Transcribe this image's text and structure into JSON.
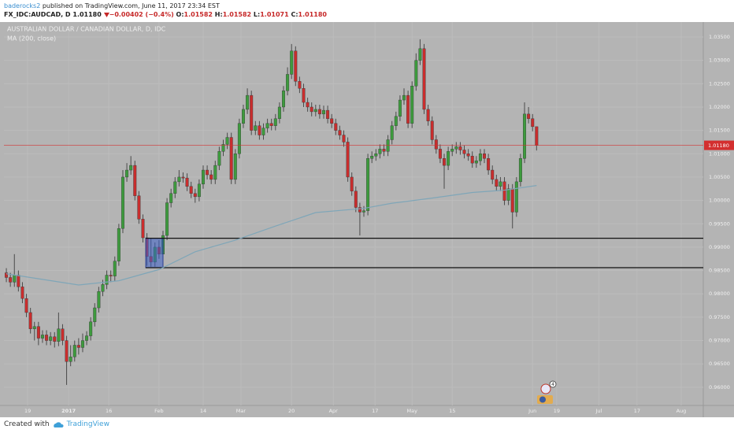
{
  "header": {
    "author": "baderocks2",
    "published": "published on TradingView.com, June 11, 2017 23:34 EST",
    "symbol": "FX_IDC:AUDCAD, D",
    "price": "1.01180",
    "change": "−0.00402 (−0.4%)",
    "o_label": "O:",
    "o": "1.01582",
    "h_label": "H:",
    "h": "1.01582",
    "l_label": "L:",
    "l": "1.01071",
    "c_label": "C:",
    "c": "1.01180"
  },
  "footer": {
    "created": "Created with",
    "brand": "TradingView"
  },
  "events_badge": "4",
  "chart_data": {
    "type": "candlestick",
    "title": "AUSTRALIAN DOLLAR / CANADIAN DOLLAR, D, IDC",
    "up_color": "#3d9b3d",
    "down_color": "#c92d2d",
    "grid": true,
    "xlim": [
      -0.6,
      173.5
    ],
    "xticks": [
      {
        "value": 5.3,
        "label": "19"
      },
      {
        "value": 15.5,
        "label": "2017"
      },
      {
        "value": 25.5,
        "label": "16"
      },
      {
        "value": 38,
        "label": "Feb"
      },
      {
        "value": 49,
        "label": "14"
      },
      {
        "value": 58.4,
        "label": "Mar"
      },
      {
        "value": 71,
        "label": "20"
      },
      {
        "value": 81.4,
        "label": "Apr"
      },
      {
        "value": 91.8,
        "label": "17"
      },
      {
        "value": 101,
        "label": "May"
      },
      {
        "value": 111,
        "label": "15"
      },
      {
        "value": 131,
        "label": "Jun"
      },
      {
        "value": 137,
        "label": "19"
      },
      {
        "value": 147.5,
        "label": "Jul"
      },
      {
        "value": 157,
        "label": "17"
      },
      {
        "value": 168,
        "label": "Aug"
      }
    ],
    "ylim": [
      0.9561,
      1.0382
    ],
    "yticks": [
      {
        "value": 0.96,
        "label": "0.96000"
      },
      {
        "value": 0.965,
        "label": "0.96500"
      },
      {
        "value": 0.97,
        "label": "0.97000"
      },
      {
        "value": 0.975,
        "label": "0.97500"
      },
      {
        "value": 0.98,
        "label": "0.98000"
      },
      {
        "value": 0.985,
        "label": "0.98500"
      },
      {
        "value": 0.99,
        "label": "0.99000"
      },
      {
        "value": 0.995,
        "label": "0.99500"
      },
      {
        "value": 1.0,
        "label": "1.00000"
      },
      {
        "value": 1.005,
        "label": "1.00500"
      },
      {
        "value": 1.01,
        "label": "1.01000"
      },
      {
        "value": 1.015,
        "label": "1.01500"
      },
      {
        "value": 1.02,
        "label": "1.02000"
      },
      {
        "value": 1.025,
        "label": "1.02500"
      },
      {
        "value": 1.03,
        "label": "1.03000"
      },
      {
        "value": 1.035,
        "label": "1.03500"
      }
    ],
    "open": [
      0.9845,
      0.9835,
      0.9825,
      0.984,
      0.9815,
      0.979,
      0.976,
      0.9725,
      0.973,
      0.9705,
      0.9712,
      0.97,
      0.9708,
      0.9698,
      0.9725,
      0.97,
      0.9655,
      0.9665,
      0.969,
      0.9685,
      0.97,
      0.971,
      0.974,
      0.977,
      0.9805,
      0.982,
      0.984,
      0.9838,
      0.987,
      0.994,
      1.005,
      1.0065,
      1.0075,
      1.001,
      0.996,
      0.992,
      0.988,
      0.9868,
      0.99,
      0.9885,
      0.9925,
      0.9995,
      1.0015,
      1.004,
      1.005,
      1.0048,
      1.003,
      1.0015,
      1.0008,
      1.0035,
      1.0065,
      1.0055,
      1.0045,
      1.0075,
      1.0105,
      1.012,
      1.0135,
      1.0045,
      1.01,
      1.0165,
      1.0195,
      1.0225,
      1.015,
      1.016,
      1.014,
      1.0155,
      1.0165,
      1.016,
      1.0175,
      1.02,
      1.0235,
      1.027,
      1.032,
      1.0255,
      1.024,
      1.021,
      1.02,
      1.019,
      1.0195,
      1.0185,
      1.0193,
      1.0175,
      1.0165,
      1.015,
      1.014,
      1.0125,
      1.005,
      1.002,
      0.9985,
      0.9975,
      0.9978,
      1.009,
      1.0095,
      1.01,
      1.011,
      1.0105,
      1.013,
      1.016,
      1.018,
      1.0215,
      1.0225,
      1.0165,
      1.0245,
      1.03,
      1.0325,
      1.0195,
      1.017,
      1.013,
      1.011,
      1.009,
      1.0075,
      1.0105,
      1.011,
      1.0115,
      1.0108,
      1.01,
      1.0095,
      1.008,
      1.0085,
      1.01,
      1.009,
      1.0065,
      1.0045,
      1.003,
      1.004,
      1.0,
      1.0025,
      0.9975,
      1.004,
      1.009,
      1.0185,
      1.0175,
      1.0158
    ],
    "high": [
      0.9855,
      0.9845,
      0.9885,
      0.985,
      0.9825,
      0.98,
      0.977,
      0.974,
      0.974,
      0.9722,
      0.9722,
      0.9718,
      0.9718,
      0.976,
      0.9735,
      0.971,
      0.969,
      0.97,
      0.9705,
      0.9715,
      0.972,
      0.975,
      0.978,
      0.9815,
      0.983,
      0.985,
      0.985,
      0.988,
      0.995,
      1.0065,
      1.008,
      1.0095,
      1.0085,
      1.002,
      0.997,
      0.993,
      0.992,
      0.991,
      0.9915,
      0.9935,
      1.0005,
      1.0025,
      1.005,
      1.0065,
      1.006,
      1.0058,
      1.004,
      1.0025,
      1.0045,
      1.0075,
      1.0075,
      1.0065,
      1.0085,
      1.0115,
      1.013,
      1.0145,
      1.0145,
      1.011,
      1.0175,
      1.0205,
      1.024,
      1.0235,
      1.017,
      1.017,
      1.0165,
      1.0175,
      1.0175,
      1.0185,
      1.021,
      1.0245,
      1.0285,
      1.0335,
      1.033,
      1.0265,
      1.025,
      1.022,
      1.021,
      1.0205,
      1.0205,
      1.0203,
      1.0203,
      1.0185,
      1.0175,
      1.016,
      1.015,
      1.0135,
      1.006,
      1.003,
      0.9995,
      0.9988,
      1.01,
      1.0105,
      1.011,
      1.012,
      1.012,
      1.014,
      1.017,
      1.019,
      1.0225,
      1.024,
      1.0235,
      1.0255,
      1.0315,
      1.0345,
      1.0335,
      1.0205,
      1.018,
      1.014,
      1.012,
      1.01,
      1.0115,
      1.012,
      1.0125,
      1.0125,
      1.0118,
      1.011,
      1.0105,
      1.0095,
      1.011,
      1.011,
      1.01,
      1.0075,
      1.0055,
      1.005,
      1.005,
      1.0035,
      1.0035,
      1.005,
      1.01,
      1.021,
      1.02,
      1.0185,
      1.0158
    ],
    "low": [
      0.9825,
      0.9815,
      0.9815,
      0.9805,
      0.978,
      0.975,
      0.9715,
      0.97,
      0.969,
      0.9695,
      0.969,
      0.969,
      0.9685,
      0.9688,
      0.969,
      0.9605,
      0.9645,
      0.9655,
      0.967,
      0.9675,
      0.969,
      0.97,
      0.973,
      0.976,
      0.9795,
      0.981,
      0.9825,
      0.9828,
      0.986,
      0.993,
      1.004,
      1.0055,
      1.0,
      0.995,
      0.991,
      0.986,
      0.9858,
      0.9858,
      0.9875,
      0.9875,
      0.9915,
      0.9985,
      1.0005,
      1.003,
      1.0038,
      1.002,
      1.0005,
      0.9995,
      0.9998,
      1.0025,
      1.0045,
      1.0035,
      1.0035,
      1.0065,
      1.0095,
      1.011,
      1.0035,
      1.0035,
      1.009,
      1.0155,
      1.0185,
      1.014,
      1.014,
      1.013,
      1.013,
      1.0145,
      1.015,
      1.015,
      1.0165,
      1.019,
      1.0225,
      1.026,
      1.0245,
      1.023,
      1.02,
      1.019,
      1.018,
      1.018,
      1.0175,
      1.0175,
      1.0165,
      1.0155,
      1.014,
      1.013,
      1.0115,
      1.004,
      1.001,
      0.9975,
      0.9925,
      0.9965,
      0.9968,
      1.008,
      1.0085,
      1.009,
      1.0095,
      1.0095,
      1.012,
      1.015,
      1.017,
      1.0205,
      1.0155,
      1.0155,
      1.0235,
      1.029,
      1.0185,
      1.016,
      1.012,
      1.01,
      1.008,
      1.0025,
      1.0065,
      1.0095,
      1.01,
      1.0098,
      1.009,
      1.0085,
      1.007,
      1.007,
      1.0075,
      1.008,
      1.0055,
      1.0035,
      1.002,
      1.002,
      0.999,
      0.999,
      0.994,
      0.9965,
      1.003,
      1.008,
      1.0165,
      1.0148,
      1.0107
    ],
    "close": [
      0.9835,
      0.9825,
      0.984,
      0.9815,
      0.979,
      0.976,
      0.9725,
      0.973,
      0.9705,
      0.9712,
      0.97,
      0.9708,
      0.9698,
      0.9725,
      0.97,
      0.9655,
      0.9665,
      0.969,
      0.9685,
      0.97,
      0.971,
      0.974,
      0.977,
      0.9805,
      0.982,
      0.984,
      0.9838,
      0.987,
      0.994,
      1.005,
      1.0065,
      1.0075,
      1.001,
      0.996,
      0.992,
      0.988,
      0.9868,
      0.99,
      0.9885,
      0.9925,
      0.9995,
      1.0015,
      1.004,
      1.005,
      1.0048,
      1.003,
      1.0015,
      1.0008,
      1.0035,
      1.0065,
      1.0055,
      1.0045,
      1.0075,
      1.0105,
      1.012,
      1.0135,
      1.0045,
      1.01,
      1.0165,
      1.0195,
      1.0225,
      1.015,
      1.016,
      1.014,
      1.0155,
      1.0165,
      1.016,
      1.0175,
      1.02,
      1.0235,
      1.027,
      1.032,
      1.0255,
      1.024,
      1.021,
      1.02,
      1.019,
      1.0195,
      1.0185,
      1.0193,
      1.0175,
      1.0165,
      1.015,
      1.014,
      1.0125,
      1.005,
      1.002,
      0.9985,
      0.9975,
      0.9978,
      1.009,
      1.0095,
      1.01,
      1.011,
      1.0105,
      1.013,
      1.016,
      1.018,
      1.0215,
      1.0225,
      1.0165,
      1.0245,
      1.03,
      1.0325,
      1.0195,
      1.017,
      1.013,
      1.011,
      1.009,
      1.0075,
      1.0105,
      1.011,
      1.0115,
      1.0108,
      1.01,
      1.0095,
      1.008,
      1.0085,
      1.01,
      1.009,
      1.0065,
      1.0045,
      1.003,
      1.004,
      1.0,
      1.0025,
      0.9975,
      1.004,
      1.009,
      1.0185,
      1.0175,
      1.0158,
      1.0118
    ],
    "ma": {
      "name": "MA (200, close)",
      "color": "#7fa6b8",
      "x": [
        0,
        18,
        28,
        38,
        47,
        57,
        67,
        77,
        89,
        96,
        106,
        116,
        124,
        132
      ],
      "values": [
        0.9843,
        0.9819,
        0.9828,
        0.9852,
        0.989,
        0.9915,
        0.9945,
        0.9974,
        0.9983,
        0.9994,
        1.0005,
        1.0017,
        1.0022,
        1.0032
      ]
    },
    "levels": [
      {
        "price": 0.9919,
        "from": 34.7
      },
      {
        "price": 0.9856,
        "from": 34.7
      }
    ],
    "zone": {
      "x": [
        34.7,
        39
      ],
      "y": [
        0.9856,
        0.9919
      ]
    },
    "last": 1.0118,
    "last_label": "1.01180",
    "last_color": "#d32f2f"
  }
}
